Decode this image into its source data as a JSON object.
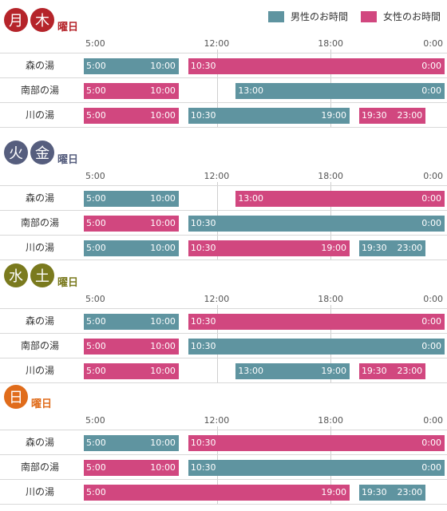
{
  "legend": {
    "male_label": "男性のお時間",
    "female_label": "女性のお時間",
    "male_color": "#5f94a0",
    "female_color": "#d1477f"
  },
  "time_labels": [
    "5:00",
    "12:00",
    "18:00",
    "0:00"
  ],
  "youbi_label": "曜日",
  "sections": [
    {
      "days": [
        "月",
        "木"
      ],
      "color": "#b5242a",
      "rows": [
        {
          "name": "森の湯",
          "bars": [
            {
              "gender": "m",
              "start": 5.0,
              "end": 10.0,
              "start_label": "5:00",
              "end_label": "10:00"
            },
            {
              "gender": "f",
              "start": 10.5,
              "end": 24.0,
              "start_label": "10:30",
              "end_label": "0:00"
            }
          ]
        },
        {
          "name": "南部の湯",
          "bars": [
            {
              "gender": "f",
              "start": 5.0,
              "end": 10.0,
              "start_label": "5:00",
              "end_label": "10:00"
            },
            {
              "gender": "m",
              "start": 13.0,
              "end": 24.0,
              "start_label": "13:00",
              "end_label": "0:00"
            }
          ]
        },
        {
          "name": "川の湯",
          "bars": [
            {
              "gender": "f",
              "start": 5.0,
              "end": 10.0,
              "start_label": "5:00",
              "end_label": "10:00"
            },
            {
              "gender": "m",
              "start": 10.5,
              "end": 19.0,
              "start_label": "10:30",
              "end_label": "19:00"
            },
            {
              "gender": "f",
              "start": 19.5,
              "end": 23.0,
              "start_label": "19:30",
              "end_label": "23:00"
            }
          ]
        }
      ]
    },
    {
      "days": [
        "火",
        "金"
      ],
      "color": "#565e7e",
      "rows": [
        {
          "name": "森の湯",
          "bars": [
            {
              "gender": "m",
              "start": 5.0,
              "end": 10.0,
              "start_label": "5:00",
              "end_label": "10:00"
            },
            {
              "gender": "f",
              "start": 13.0,
              "end": 24.0,
              "start_label": "13:00",
              "end_label": "0:00"
            }
          ]
        },
        {
          "name": "南部の湯",
          "bars": [
            {
              "gender": "f",
              "start": 5.0,
              "end": 10.0,
              "start_label": "5:00",
              "end_label": "10:00"
            },
            {
              "gender": "m",
              "start": 10.5,
              "end": 24.0,
              "start_label": "10:30",
              "end_label": "0:00"
            }
          ]
        },
        {
          "name": "川の湯",
          "bars": [
            {
              "gender": "m",
              "start": 5.0,
              "end": 10.0,
              "start_label": "5:00",
              "end_label": "10:00"
            },
            {
              "gender": "f",
              "start": 10.5,
              "end": 19.0,
              "start_label": "10:30",
              "end_label": "19:00"
            },
            {
              "gender": "m",
              "start": 19.5,
              "end": 23.0,
              "start_label": "19:30",
              "end_label": "23:00"
            }
          ]
        }
      ]
    },
    {
      "days": [
        "水",
        "土"
      ],
      "color": "#7a7a1e",
      "rows": [
        {
          "name": "森の湯",
          "bars": [
            {
              "gender": "m",
              "start": 5.0,
              "end": 10.0,
              "start_label": "5:00",
              "end_label": "10:00"
            },
            {
              "gender": "f",
              "start": 10.5,
              "end": 24.0,
              "start_label": "10:30",
              "end_label": "0:00"
            }
          ]
        },
        {
          "name": "南部の湯",
          "bars": [
            {
              "gender": "f",
              "start": 5.0,
              "end": 10.0,
              "start_label": "5:00",
              "end_label": "10:00"
            },
            {
              "gender": "m",
              "start": 10.5,
              "end": 24.0,
              "start_label": "10:30",
              "end_label": "0:00"
            }
          ]
        },
        {
          "name": "川の湯",
          "bars": [
            {
              "gender": "f",
              "start": 5.0,
              "end": 10.0,
              "start_label": "5:00",
              "end_label": "10:00"
            },
            {
              "gender": "m",
              "start": 13.0,
              "end": 19.0,
              "start_label": "13:00",
              "end_label": "19:00"
            },
            {
              "gender": "f",
              "start": 19.5,
              "end": 23.0,
              "start_label": "19:30",
              "end_label": "23:00"
            }
          ]
        }
      ]
    },
    {
      "days": [
        "日"
      ],
      "color": "#e06c1b",
      "rows": [
        {
          "name": "森の湯",
          "bars": [
            {
              "gender": "m",
              "start": 5.0,
              "end": 10.0,
              "start_label": "5:00",
              "end_label": "10:00"
            },
            {
              "gender": "f",
              "start": 10.5,
              "end": 24.0,
              "start_label": "10:30",
              "end_label": "0:00"
            }
          ]
        },
        {
          "name": "南部の湯",
          "bars": [
            {
              "gender": "f",
              "start": 5.0,
              "end": 10.0,
              "start_label": "5:00",
              "end_label": "10:00"
            },
            {
              "gender": "m",
              "start": 10.5,
              "end": 24.0,
              "start_label": "10:30",
              "end_label": "0:00"
            }
          ]
        },
        {
          "name": "川の湯",
          "bars": [
            {
              "gender": "f",
              "start": 5.0,
              "end": 19.0,
              "start_label": "5:00",
              "end_label": "19:00"
            },
            {
              "gender": "m",
              "start": 19.5,
              "end": 23.0,
              "start_label": "19:30",
              "end_label": "23:00"
            }
          ]
        }
      ]
    }
  ]
}
